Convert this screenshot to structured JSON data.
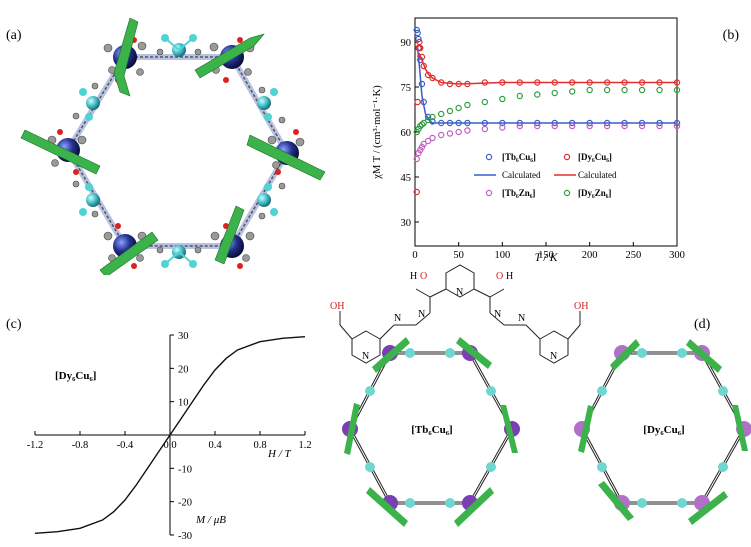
{
  "figure": {
    "panels": {
      "a": {
        "label": "(a)"
      },
      "b": {
        "label": "(b)"
      },
      "c": {
        "label": "(c)"
      },
      "d": {
        "label": "(d)"
      }
    },
    "panel_b": {
      "legend": {
        "tb6cu6": "[Tb₆Cu₆]",
        "dy6cu6": "[Dy₆Cu₆]",
        "calc_blue": "Calculated",
        "calc_red": "Calculated",
        "tb6zn6": "[Tb₆Zn₆]",
        "dy6zn6": "[Dy₆Zn₆]"
      },
      "ylabel": "χM T / (cm³·mol⁻¹·K)",
      "xlabel": "T / K"
    },
    "panel_c": {
      "compound": "[Dy₆Cu₆]",
      "xlabel": "H / T",
      "ylabel": "M / μB"
    },
    "panel_d": {
      "ring_left": "[Tb₆Cu₆]",
      "ring_right": "[Dy₆Cu₆]",
      "ligand_atoms": {
        "o_left": "O",
        "h_left": "H",
        "o_right": "O",
        "h_right": "H",
        "n1": "N",
        "n2": "N",
        "n3": "N",
        "n4": "N",
        "n5": "N",
        "n6": "N",
        "n7": "N",
        "oh_left": "OH",
        "oh_right": "OH"
      }
    },
    "colors": {
      "blue": "#3a5fc8",
      "red": "#e03030",
      "magenta": "#c060c0",
      "green": "#30a040",
      "arrow_green": "#3cb34a",
      "dy_purple": "#7a3fb0",
      "cyan": "#50c0c8"
    }
  },
  "chart_data": [
    {
      "type": "scatter",
      "panel": "b",
      "xlabel": "T / K",
      "ylabel": "χM T / (cm³·mol⁻¹·K)",
      "xlim": [
        0,
        300
      ],
      "ylim": [
        22,
        98
      ],
      "xticks": [
        0,
        50,
        100,
        150,
        200,
        250,
        300
      ],
      "yticks": [
        30,
        45,
        60,
        75,
        90
      ],
      "series": [
        {
          "name": "[Tb₆Cu₆]",
          "kind": "points",
          "color": "#3a5fc8",
          "x": [
            2,
            3,
            4,
            5,
            6,
            8,
            10,
            15,
            20,
            30,
            40,
            50,
            60,
            80,
            100,
            120,
            140,
            160,
            180,
            200,
            220,
            240,
            260,
            280,
            300
          ],
          "y": [
            94,
            93,
            91,
            88,
            84,
            76,
            70,
            65,
            63.5,
            63,
            63,
            63,
            63,
            63,
            63,
            63,
            63,
            63,
            63,
            63,
            63,
            63,
            63,
            63,
            63
          ]
        },
        {
          "name": "[Dy₆Cu₆]",
          "kind": "points",
          "color": "#e03030",
          "x": [
            2,
            3,
            4,
            5,
            6,
            8,
            10,
            15,
            20,
            30,
            40,
            50,
            60,
            80,
            100,
            120,
            140,
            160,
            180,
            200,
            220,
            240,
            260,
            280,
            300
          ],
          "y": [
            40,
            70,
            88,
            90,
            88,
            85,
            82,
            79,
            78,
            76.5,
            76,
            76,
            76,
            76.5,
            76.5,
            76.5,
            76.5,
            76.5,
            76.5,
            76.5,
            76.5,
            76.5,
            76.5,
            76.5,
            76.5
          ]
        },
        {
          "name": "Calculated",
          "kind": "line",
          "color": "#3a5fc8",
          "x": [
            3,
            5,
            8,
            12,
            16,
            20,
            30,
            50,
            100,
            200,
            300
          ],
          "y": [
            88,
            82,
            72,
            66,
            64,
            63,
            63,
            63,
            63,
            63,
            63
          ]
        },
        {
          "name": "Calculated",
          "kind": "line",
          "color": "#e03030",
          "x": [
            3,
            5,
            8,
            12,
            16,
            20,
            30,
            50,
            100,
            200,
            300
          ],
          "y": [
            85,
            86,
            84,
            81,
            79,
            78,
            76.5,
            76,
            76.5,
            76.5,
            76.5
          ]
        },
        {
          "name": "[Tb₆Zn₆]",
          "kind": "points",
          "color": "#c060c0",
          "x": [
            2,
            4,
            6,
            8,
            10,
            15,
            20,
            30,
            40,
            50,
            60,
            80,
            100,
            120,
            140,
            160,
            180,
            200,
            220,
            240,
            260,
            280,
            300
          ],
          "y": [
            51,
            53,
            54,
            55,
            56,
            57,
            58,
            59,
            59.5,
            60,
            60.5,
            61,
            61.5,
            62,
            62,
            62,
            62,
            62,
            62,
            62,
            62,
            62,
            62
          ]
        },
        {
          "name": "[Dy₆Zn₆]",
          "kind": "points",
          "color": "#30a040",
          "x": [
            2,
            4,
            6,
            8,
            10,
            15,
            20,
            30,
            40,
            50,
            60,
            80,
            100,
            120,
            140,
            160,
            180,
            200,
            220,
            240,
            260,
            280,
            300
          ],
          "y": [
            60,
            61,
            62,
            62.5,
            63,
            64,
            65,
            66,
            67,
            68,
            69,
            70,
            71,
            72,
            72.5,
            73,
            73.5,
            74,
            74,
            74,
            74,
            74,
            74
          ]
        }
      ]
    },
    {
      "type": "line",
      "panel": "c",
      "xlabel": "H / T",
      "ylabel": "M / μB",
      "xlim": [
        -1.2,
        1.2
      ],
      "ylim": [
        -30,
        30
      ],
      "xticks": [
        -1.2,
        -0.8,
        -0.4,
        0.0,
        0.4,
        0.8,
        1.2
      ],
      "yticks": [
        -30,
        -20,
        -10,
        0,
        10,
        20,
        30
      ],
      "series": [
        {
          "name": "[Dy₆Cu₆]",
          "x": [
            -1.2,
            -1.0,
            -0.8,
            -0.6,
            -0.5,
            -0.4,
            -0.3,
            -0.2,
            -0.1,
            0,
            0.1,
            0.2,
            0.3,
            0.4,
            0.5,
            0.6,
            0.8,
            1.0,
            1.2
          ],
          "y": [
            -29.5,
            -29,
            -28,
            -25.5,
            -23,
            -19.5,
            -15,
            -10,
            -5,
            0,
            5,
            10,
            15,
            19.5,
            23,
            25.5,
            28,
            29,
            29.5
          ]
        }
      ]
    }
  ]
}
